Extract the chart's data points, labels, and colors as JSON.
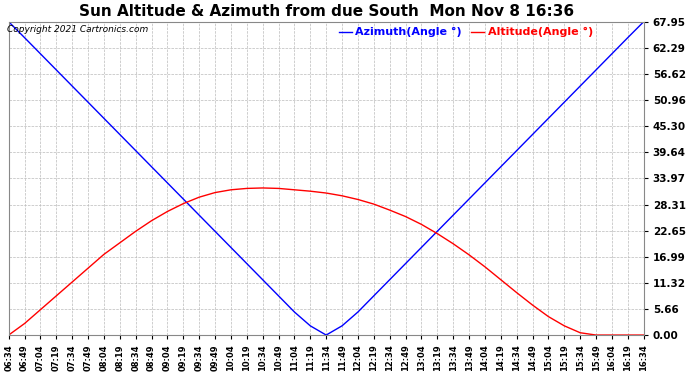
{
  "title": "Sun Altitude & Azimuth from due South  Mon Nov 8 16:36",
  "copyright_text": "Copyright 2021 Cartronics.com",
  "legend_azimuth": "Azimuth(Angle °)",
  "legend_altitude": "Altitude(Angle °)",
  "azimuth_color": "blue",
  "altitude_color": "red",
  "background_color": "#ffffff",
  "grid_color": "#bbbbbb",
  "yticks": [
    0.0,
    5.66,
    11.32,
    16.99,
    22.65,
    28.31,
    33.97,
    39.64,
    45.3,
    50.96,
    56.62,
    62.29,
    67.95
  ],
  "ymin": 0.0,
  "ymax": 67.95,
  "time_labels": [
    "06:34",
    "06:49",
    "07:04",
    "07:19",
    "07:34",
    "07:49",
    "08:04",
    "08:19",
    "08:34",
    "08:49",
    "09:04",
    "09:19",
    "09:34",
    "09:49",
    "10:04",
    "10:19",
    "10:34",
    "10:49",
    "11:04",
    "11:19",
    "11:34",
    "11:49",
    "12:04",
    "12:19",
    "12:34",
    "12:49",
    "13:04",
    "13:19",
    "13:34",
    "13:49",
    "14:04",
    "14:19",
    "14:34",
    "14:49",
    "15:04",
    "15:19",
    "15:34",
    "15:49",
    "16:04",
    "16:19",
    "16:34"
  ],
  "azimuth_values": [
    67.95,
    64.5,
    61.0,
    57.5,
    54.0,
    50.5,
    47.0,
    43.5,
    40.0,
    36.5,
    33.0,
    29.5,
    26.0,
    22.5,
    19.0,
    15.5,
    12.0,
    8.5,
    5.0,
    2.0,
    0.0,
    2.0,
    5.0,
    8.5,
    12.0,
    15.5,
    19.0,
    22.5,
    26.0,
    29.5,
    33.0,
    36.5,
    40.0,
    43.5,
    47.0,
    50.5,
    54.0,
    57.5,
    61.0,
    64.5,
    67.95
  ],
  "altitude_values": [
    0.0,
    2.5,
    5.5,
    8.5,
    11.5,
    14.5,
    17.5,
    20.0,
    22.5,
    24.8,
    26.8,
    28.5,
    29.9,
    30.9,
    31.5,
    31.8,
    31.9,
    31.8,
    31.5,
    31.2,
    30.8,
    30.2,
    29.4,
    28.4,
    27.1,
    25.7,
    24.0,
    22.0,
    19.8,
    17.4,
    14.8,
    12.0,
    9.2,
    6.5,
    4.0,
    2.0,
    0.5,
    0.0,
    0.0,
    0.0,
    0.0
  ],
  "title_fontsize": 11,
  "tick_fontsize": 6.0,
  "ytick_fontsize": 7.5,
  "legend_fontsize": 8,
  "copyright_fontsize": 6.5
}
